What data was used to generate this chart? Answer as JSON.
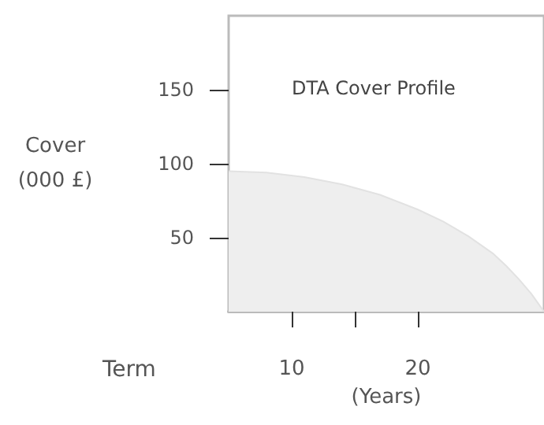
{
  "chart_data": {
    "type": "area",
    "title": "DTA Cover Profile",
    "xlabel": "(Years)",
    "ylabel": "Cover\n(000 £)",
    "annotations": [
      "Term"
    ],
    "x": [
      5,
      8,
      11,
      14,
      17,
      20,
      22,
      24,
      26,
      27,
      28,
      29,
      30
    ],
    "values": [
      95,
      94,
      91,
      86,
      79,
      69,
      61,
      51,
      39,
      31,
      22,
      12,
      0
    ],
    "color": "#eeeeee",
    "xlim": [
      5,
      30
    ],
    "xticks": [
      10,
      {
        "value": 15,
        "label": null
      },
      20
    ],
    "ylim": [
      0,
      200
    ],
    "yticks": [
      50,
      100,
      150
    ],
    "grid": false,
    "marker": "none"
  }
}
